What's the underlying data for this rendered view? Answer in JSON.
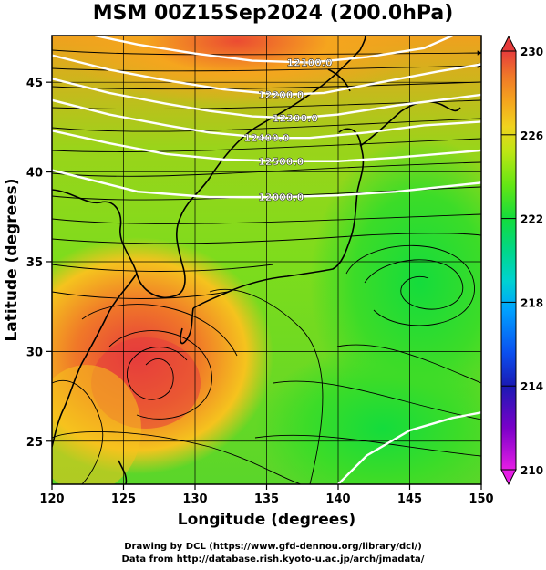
{
  "title": "MSM 00Z15Sep2024 (200.0hPa)",
  "x_axis": {
    "label": "Longitude (degrees)",
    "ticks": [
      {
        "value": 120,
        "label": "120"
      },
      {
        "value": 125,
        "label": "125"
      },
      {
        "value": 130,
        "label": "130"
      },
      {
        "value": 135,
        "label": "135"
      },
      {
        "value": 140,
        "label": "140"
      },
      {
        "value": 145,
        "label": "145"
      },
      {
        "value": 150,
        "label": "150"
      }
    ],
    "range": [
      120,
      150
    ]
  },
  "y_axis": {
    "label": "Latitude  (degrees)",
    "ticks": [
      {
        "value": 25,
        "label": "25"
      },
      {
        "value": 30,
        "label": "30"
      },
      {
        "value": 35,
        "label": "35"
      },
      {
        "value": 40,
        "label": "40"
      },
      {
        "value": 45,
        "label": "45"
      }
    ],
    "range": [
      22.6,
      47.6
    ]
  },
  "colorbar": {
    "range": [
      210,
      230
    ],
    "ticks": [
      {
        "value": 210,
        "label": "210"
      },
      {
        "value": 214,
        "label": "214"
      },
      {
        "value": 218,
        "label": "218"
      },
      {
        "value": 222,
        "label": "222"
      },
      {
        "value": 226,
        "label": "226"
      },
      {
        "value": 230,
        "label": "230"
      }
    ],
    "colors": [
      "#e61ee6",
      "#7a00c8",
      "#1a1ab4",
      "#0a50f0",
      "#00a0ff",
      "#00d2d2",
      "#00d78c",
      "#14dc3c",
      "#64e614",
      "#bee614",
      "#f0d21e",
      "#f5a51e",
      "#f07828",
      "#eb4b32",
      "#e63c3c"
    ]
  },
  "contours": [
    {
      "label": "12000.0",
      "points": [
        [
          120,
          40.1
        ],
        [
          126,
          38.9
        ],
        [
          131,
          38.6
        ],
        [
          136,
          38.6
        ],
        [
          140,
          38.7
        ],
        [
          144,
          38.9
        ],
        [
          150,
          39.4
        ]
      ]
    },
    {
      "label": "12100.0",
      "points": [
        [
          123,
          47.6
        ],
        [
          126,
          47.1
        ],
        [
          130,
          46.6
        ],
        [
          134,
          46.2
        ],
        [
          138,
          46.1
        ],
        [
          142,
          46.4
        ],
        [
          146,
          46.9
        ],
        [
          148,
          47.6
        ]
      ]
    },
    {
      "label": "12200.0",
      "points": [
        [
          120,
          46.5
        ],
        [
          124,
          45.7
        ],
        [
          128,
          45.1
        ],
        [
          132,
          44.6
        ],
        [
          136,
          44.3
        ],
        [
          139,
          44.4
        ],
        [
          143,
          45.0
        ],
        [
          147,
          45.6
        ],
        [
          150,
          46.0
        ]
      ]
    },
    {
      "label": "12300.0",
      "points": [
        [
          120,
          45.2
        ],
        [
          124,
          44.4
        ],
        [
          128,
          43.8
        ],
        [
          131,
          43.4
        ],
        [
          134,
          43.1
        ],
        [
          137,
          43.0
        ],
        [
          140,
          43.2
        ],
        [
          144,
          43.7
        ],
        [
          148,
          44.1
        ],
        [
          150,
          44.3
        ]
      ]
    },
    {
      "label": "12400.0",
      "points": [
        [
          120,
          44.0
        ],
        [
          124,
          43.2
        ],
        [
          128,
          42.6
        ],
        [
          131,
          42.2
        ],
        [
          135,
          41.9
        ],
        [
          138,
          41.9
        ],
        [
          142,
          42.2
        ],
        [
          146,
          42.6
        ],
        [
          150,
          42.8
        ]
      ]
    },
    {
      "label": "12500.0",
      "points": [
        [
          120,
          42.3
        ],
        [
          124,
          41.6
        ],
        [
          128,
          41.0
        ],
        [
          132,
          40.7
        ],
        [
          136,
          40.6
        ],
        [
          140,
          40.6
        ],
        [
          144,
          40.8
        ],
        [
          150,
          41.2
        ]
      ]
    },
    {
      "label": "",
      "points": [
        [
          140,
          22.6
        ],
        [
          142,
          24.2
        ],
        [
          145,
          25.6
        ],
        [
          148,
          26.3
        ],
        [
          150,
          26.6
        ]
      ]
    }
  ],
  "credits": [
    "Drawing by DCL (https://www.gfd-dennou.org/library/dcl/)",
    "Data from http://database.rish.kyoto-u.ac.jp/arch/jmadata/"
  ],
  "colors": {
    "hot": "#e63c3c",
    "warm": "#f07828",
    "mid": "#bee614",
    "cool": "#14dc3c",
    "frame": "#000000",
    "contour": "#ffffff"
  }
}
